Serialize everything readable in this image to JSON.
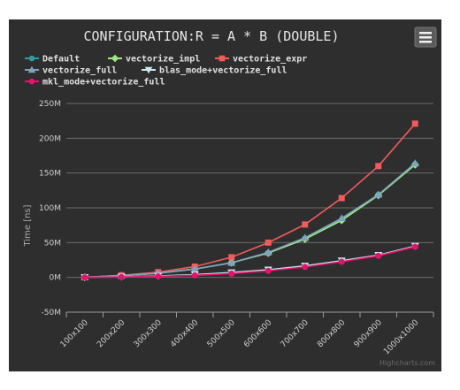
{
  "chart_data": {
    "type": "line",
    "title": "CONFIGURATION:R = A * B (DOUBLE)",
    "ylabel": "Time [ns]",
    "xlabel": "",
    "categories": [
      "100x100",
      "200x200",
      "300x300",
      "400x400",
      "500x500",
      "600x600",
      "700x700",
      "800x800",
      "900x900",
      "1000x1000"
    ],
    "ylim": [
      -50000000,
      250000000
    ],
    "y_ticks": [
      -50000000,
      0,
      50000000,
      100000000,
      150000000,
      200000000,
      250000000
    ],
    "y_tick_labels": [
      "-50M",
      "0M",
      "50M",
      "100M",
      "150M",
      "200M",
      "250M"
    ],
    "grid": true,
    "legend_position": "top-left",
    "series": [
      {
        "name": "Default",
        "color": "#2a9d9e",
        "marker": "circle",
        "values": [
          200000,
          2500000,
          6000000,
          12000000,
          21000000,
          35000000,
          56000000,
          83000000,
          119000000,
          163000000
        ]
      },
      {
        "name": "vectorize_impl",
        "color": "#9eea7e",
        "marker": "diamond",
        "values": [
          200000,
          2500000,
          6000000,
          12000000,
          21000000,
          35000000,
          55000000,
          82000000,
          118000000,
          162000000
        ]
      },
      {
        "name": "vectorize_expr",
        "color": "#f05b5b",
        "marker": "square",
        "values": [
          300000,
          3000000,
          7500000,
          15500000,
          29000000,
          50000000,
          76000000,
          114000000,
          160000000,
          221000000
        ]
      },
      {
        "name": "vectorize_full",
        "color": "#7fa3be",
        "marker": "triangle",
        "values": [
          200000,
          2500000,
          6000000,
          12000000,
          21000000,
          36000000,
          57000000,
          85000000,
          119000000,
          164000000
        ]
      },
      {
        "name": "blas_mode+vectorize_full",
        "color": "#c8ecf2",
        "marker": "triangle-down",
        "values": [
          100000,
          800000,
          2000000,
          4000000,
          7000000,
          11000000,
          16500000,
          24000000,
          32000000,
          45000000
        ]
      },
      {
        "name": "mkl_mode+vectorize_full",
        "color": "#e8126e",
        "marker": "circle",
        "values": [
          100000,
          600000,
          1500000,
          3000000,
          5500000,
          9500000,
          15000000,
          22500000,
          31000000,
          44000000
        ]
      }
    ]
  },
  "credits": "Highcharts.com",
  "menu": {
    "icon": "hamburger-menu-icon"
  }
}
